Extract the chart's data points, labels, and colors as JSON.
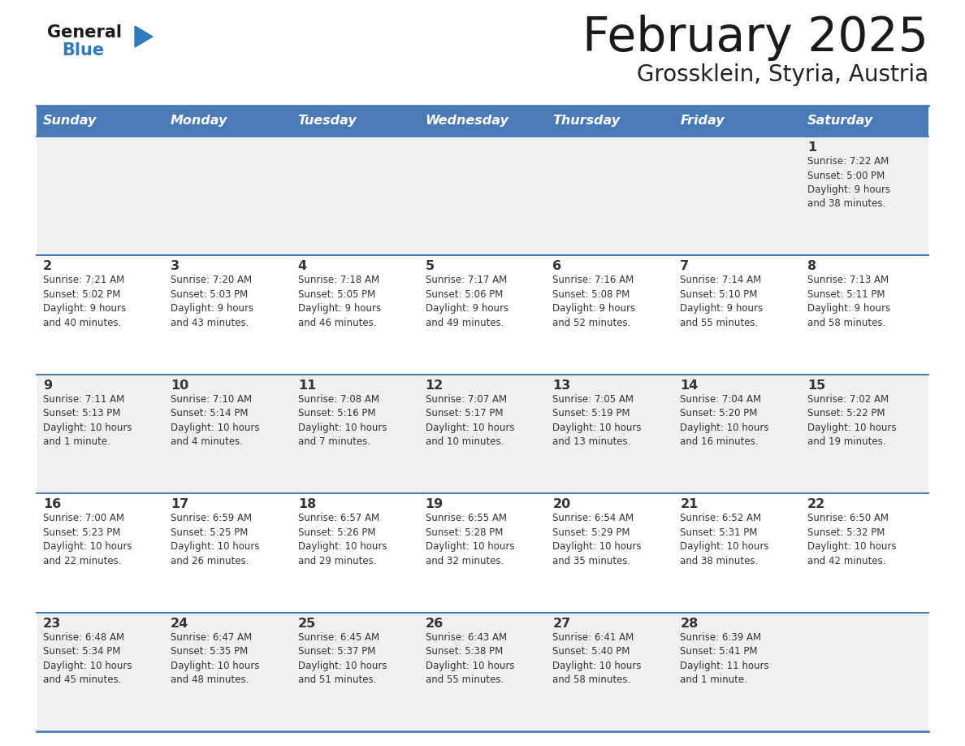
{
  "title": "February 2025",
  "subtitle": "Grossklein, Styria, Austria",
  "days_of_week": [
    "Sunday",
    "Monday",
    "Tuesday",
    "Wednesday",
    "Thursday",
    "Friday",
    "Saturday"
  ],
  "header_bg": "#4a7ab5",
  "header_text": "#ffffff",
  "row_bg_light": "#f0f0f0",
  "row_bg_white": "#ffffff",
  "border_color": "#4a7ab5",
  "text_color": "#333333",
  "title_color": "#1a1a1a",
  "subtitle_color": "#222222",
  "logo_general_color": "#1a1a1a",
  "logo_blue_color": "#2e7abf",
  "calendar_data": [
    [
      null,
      null,
      null,
      null,
      null,
      null,
      {
        "day": "1",
        "sunrise": "7:22 AM",
        "sunset": "5:00 PM",
        "daylight": "9 hours\nand 38 minutes."
      }
    ],
    [
      {
        "day": "2",
        "sunrise": "7:21 AM",
        "sunset": "5:02 PM",
        "daylight": "9 hours\nand 40 minutes."
      },
      {
        "day": "3",
        "sunrise": "7:20 AM",
        "sunset": "5:03 PM",
        "daylight": "9 hours\nand 43 minutes."
      },
      {
        "day": "4",
        "sunrise": "7:18 AM",
        "sunset": "5:05 PM",
        "daylight": "9 hours\nand 46 minutes."
      },
      {
        "day": "5",
        "sunrise": "7:17 AM",
        "sunset": "5:06 PM",
        "daylight": "9 hours\nand 49 minutes."
      },
      {
        "day": "6",
        "sunrise": "7:16 AM",
        "sunset": "5:08 PM",
        "daylight": "9 hours\nand 52 minutes."
      },
      {
        "day": "7",
        "sunrise": "7:14 AM",
        "sunset": "5:10 PM",
        "daylight": "9 hours\nand 55 minutes."
      },
      {
        "day": "8",
        "sunrise": "7:13 AM",
        "sunset": "5:11 PM",
        "daylight": "9 hours\nand 58 minutes."
      }
    ],
    [
      {
        "day": "9",
        "sunrise": "7:11 AM",
        "sunset": "5:13 PM",
        "daylight": "10 hours\nand 1 minute."
      },
      {
        "day": "10",
        "sunrise": "7:10 AM",
        "sunset": "5:14 PM",
        "daylight": "10 hours\nand 4 minutes."
      },
      {
        "day": "11",
        "sunrise": "7:08 AM",
        "sunset": "5:16 PM",
        "daylight": "10 hours\nand 7 minutes."
      },
      {
        "day": "12",
        "sunrise": "7:07 AM",
        "sunset": "5:17 PM",
        "daylight": "10 hours\nand 10 minutes."
      },
      {
        "day": "13",
        "sunrise": "7:05 AM",
        "sunset": "5:19 PM",
        "daylight": "10 hours\nand 13 minutes."
      },
      {
        "day": "14",
        "sunrise": "7:04 AM",
        "sunset": "5:20 PM",
        "daylight": "10 hours\nand 16 minutes."
      },
      {
        "day": "15",
        "sunrise": "7:02 AM",
        "sunset": "5:22 PM",
        "daylight": "10 hours\nand 19 minutes."
      }
    ],
    [
      {
        "day": "16",
        "sunrise": "7:00 AM",
        "sunset": "5:23 PM",
        "daylight": "10 hours\nand 22 minutes."
      },
      {
        "day": "17",
        "sunrise": "6:59 AM",
        "sunset": "5:25 PM",
        "daylight": "10 hours\nand 26 minutes."
      },
      {
        "day": "18",
        "sunrise": "6:57 AM",
        "sunset": "5:26 PM",
        "daylight": "10 hours\nand 29 minutes."
      },
      {
        "day": "19",
        "sunrise": "6:55 AM",
        "sunset": "5:28 PM",
        "daylight": "10 hours\nand 32 minutes."
      },
      {
        "day": "20",
        "sunrise": "6:54 AM",
        "sunset": "5:29 PM",
        "daylight": "10 hours\nand 35 minutes."
      },
      {
        "day": "21",
        "sunrise": "6:52 AM",
        "sunset": "5:31 PM",
        "daylight": "10 hours\nand 38 minutes."
      },
      {
        "day": "22",
        "sunrise": "6:50 AM",
        "sunset": "5:32 PM",
        "daylight": "10 hours\nand 42 minutes."
      }
    ],
    [
      {
        "day": "23",
        "sunrise": "6:48 AM",
        "sunset": "5:34 PM",
        "daylight": "10 hours\nand 45 minutes."
      },
      {
        "day": "24",
        "sunrise": "6:47 AM",
        "sunset": "5:35 PM",
        "daylight": "10 hours\nand 48 minutes."
      },
      {
        "day": "25",
        "sunrise": "6:45 AM",
        "sunset": "5:37 PM",
        "daylight": "10 hours\nand 51 minutes."
      },
      {
        "day": "26",
        "sunrise": "6:43 AM",
        "sunset": "5:38 PM",
        "daylight": "10 hours\nand 55 minutes."
      },
      {
        "day": "27",
        "sunrise": "6:41 AM",
        "sunset": "5:40 PM",
        "daylight": "10 hours\nand 58 minutes."
      },
      {
        "day": "28",
        "sunrise": "6:39 AM",
        "sunset": "5:41 PM",
        "daylight": "11 hours\nand 1 minute."
      },
      null
    ]
  ]
}
